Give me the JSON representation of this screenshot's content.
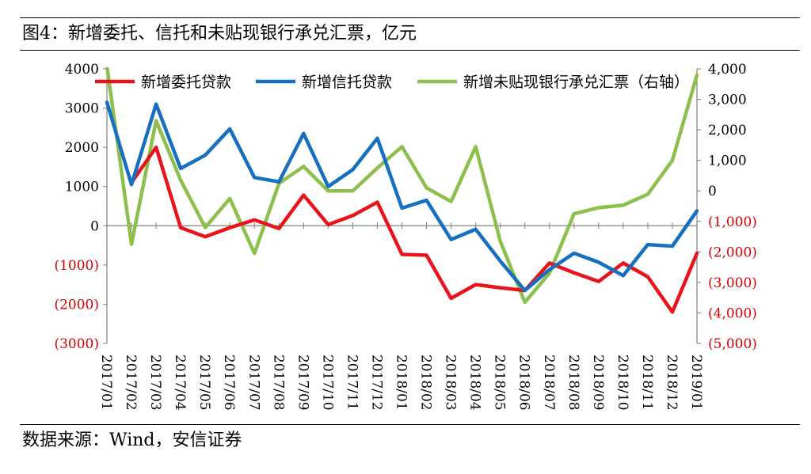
{
  "figure": {
    "title": "图4：新增委托、信托和未贴现银行承兑汇票，亿元",
    "source": "数据来源：Wind，安信证券"
  },
  "chart_data": {
    "type": "line",
    "categories": [
      "2017/01",
      "2017/02",
      "2017/03",
      "2017/04",
      "2017/05",
      "2017/06",
      "2017/07",
      "2017/08",
      "2017/09",
      "2017/10",
      "2017/11",
      "2017/12",
      "2018/01",
      "2018/02",
      "2018/03",
      "2018/04",
      "2018/05",
      "2018/06",
      "2018/07",
      "2018/08",
      "2018/09",
      "2018/10",
      "2018/11",
      "2018/12",
      "2019/01"
    ],
    "left_axis": {
      "ylim": [
        -3000,
        4000
      ],
      "ticks": [
        4000,
        3000,
        2000,
        1000,
        0,
        -1000,
        -2000,
        -3000
      ],
      "tick_labels": [
        "4000",
        "3000",
        "2000",
        "1000",
        "0",
        "(1000)",
        "(2000)",
        "(3000)"
      ],
      "negative_label_color": "#d40000"
    },
    "right_axis": {
      "ylim": [
        -5000,
        4000
      ],
      "ticks": [
        4000,
        3000,
        2000,
        1000,
        0,
        -1000,
        -2000,
        -3000,
        -4000,
        -5000
      ],
      "tick_labels": [
        "4,000",
        "3,000",
        "2,000",
        "1,000",
        "0",
        "(1,000)",
        "(2,000)",
        "(3,000)",
        "(4,000)",
        "(5,000)"
      ],
      "negative_label_color": "#d40000"
    },
    "series": [
      {
        "name": "新增委托贷款",
        "axis": "left",
        "color": "#e8141b",
        "values": [
          null,
          1100,
          2000,
          -50,
          -280,
          -50,
          150,
          -70,
          780,
          30,
          260,
          600,
          -730,
          -750,
          -1850,
          -1500,
          -1580,
          -1650,
          -950,
          -1200,
          -1420,
          -950,
          -1300,
          -2200,
          -700
        ]
      },
      {
        "name": "新增信托贷款",
        "axis": "left",
        "color": "#1670bf",
        "values": [
          3150,
          1050,
          3100,
          1460,
          1800,
          2470,
          1230,
          1120,
          2350,
          1000,
          1430,
          2230,
          450,
          650,
          -350,
          -90,
          -900,
          -1650,
          -1120,
          -700,
          -930,
          -1270,
          -480,
          -520,
          380
        ]
      },
      {
        "name": "新增未贴现银行承兑汇票（右轴）",
        "axis": "right",
        "color": "#8dbf4c",
        "values": [
          4100,
          -1750,
          2300,
          350,
          -1200,
          -250,
          -2050,
          250,
          800,
          0,
          0,
          750,
          1450,
          100,
          -350,
          1450,
          -1650,
          -3650,
          -2700,
          -750,
          -550,
          -470,
          -110,
          1000,
          3800
        ]
      }
    ]
  }
}
